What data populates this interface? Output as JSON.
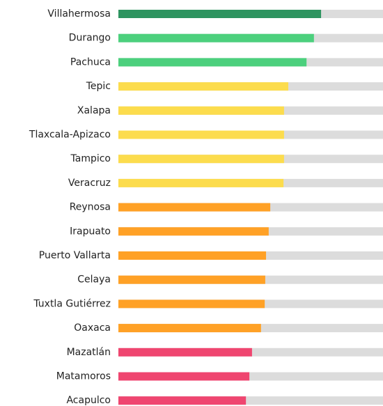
{
  "chart_data": {
    "type": "bar",
    "orientation": "horizontal",
    "categories": [
      "Villahermosa",
      "Durango",
      "Pachuca",
      "Tepic",
      "Xalapa",
      "Tlaxcala-Apizaco",
      "Tampico",
      "Veracruz",
      "Reynosa",
      "Irapuato",
      "Puerto Vallarta",
      "Celaya",
      "Tuxtla Gutiérrez",
      "Oaxaca",
      "Mazatlán",
      "Matamoros",
      "Acapulco"
    ],
    "values": [
      76.6,
      73.9,
      71.1,
      64.2,
      62.6,
      62.6,
      62.6,
      62.4,
      57.4,
      56.8,
      55.8,
      55.5,
      55.3,
      53.9,
      50.5,
      49.5,
      48.2
    ],
    "colors": [
      "#2e9460",
      "#4cd07d",
      "#4cd07d",
      "#fcdc4d",
      "#fcdc4d",
      "#fcdc4d",
      "#fcdc4d",
      "#fcdc4d",
      "#ffa126",
      "#ffa126",
      "#ffa126",
      "#ffa126",
      "#ffa126",
      "#ffa126",
      "#ef4670",
      "#ef4670",
      "#ef4670"
    ],
    "xlim": [
      0,
      100
    ]
  }
}
